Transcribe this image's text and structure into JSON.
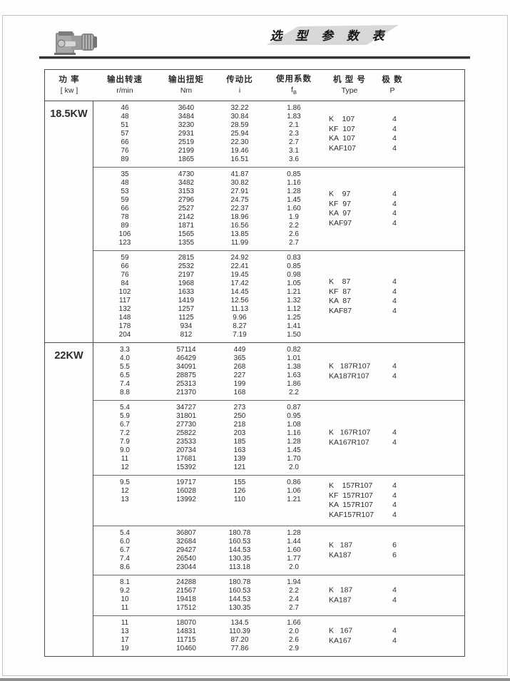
{
  "page": {
    "title": "选 型 参 数 表",
    "logo_icon": "gearmotor-photo"
  },
  "table": {
    "headers": [
      {
        "cn": "功  率",
        "en": "[ kw ]"
      },
      {
        "cn": "输出转速",
        "en": "r/min"
      },
      {
        "cn": "输出扭矩",
        "en": "Nm"
      },
      {
        "cn": "传动比",
        "en": "i"
      },
      {
        "cn": "使用系数",
        "en": "f",
        "ensub": "B"
      },
      {
        "cn": "机 型 号",
        "en": "Type"
      },
      {
        "cn": "极  数",
        "en": "P"
      }
    ],
    "sections": [
      {
        "power": "18.5KW",
        "blocks": [
          {
            "rows": [
              [
                "46",
                "3640",
                "32.22",
                "1.86"
              ],
              [
                "48",
                "3484",
                "30.84",
                "1.83"
              ],
              [
                "51",
                "3230",
                "28.59",
                "2.1"
              ],
              [
                "57",
                "2931",
                "25.94",
                "2.3"
              ],
              [
                "66",
                "2519",
                "22.30",
                "2.7"
              ],
              [
                "76",
                "2199",
                "19.46",
                "3.1"
              ],
              [
                "89",
                "1865",
                "16.51",
                "3.6"
              ]
            ],
            "models": [
              {
                "type": "K    107",
                "p": "4"
              },
              {
                "type": "KF  107",
                "p": "4"
              },
              {
                "type": "KA  107",
                "p": "4"
              },
              {
                "type": "KAF107",
                "p": "4"
              }
            ]
          },
          {
            "rows": [
              [
                "35",
                "4730",
                "41.87",
                "0.85"
              ],
              [
                "48",
                "3482",
                "30.82",
                "1.16"
              ],
              [
                "53",
                "3153",
                "27.91",
                "1.28"
              ],
              [
                "59",
                "2796",
                "24.75",
                "1.45"
              ],
              [
                "66",
                "2527",
                "22.37",
                "1.60"
              ],
              [
                "78",
                "2142",
                "18.96",
                "1.9"
              ],
              [
                "89",
                "1871",
                "16.56",
                "2.2"
              ],
              [
                "106",
                "1565",
                "13.85",
                "2.6"
              ],
              [
                "123",
                "1355",
                "11.99",
                "2.7"
              ]
            ],
            "models": [
              {
                "type": "K    97",
                "p": "4"
              },
              {
                "type": "KF  97",
                "p": "4"
              },
              {
                "type": "KA  97",
                "p": "4"
              },
              {
                "type": "KAF97",
                "p": "4"
              }
            ]
          },
          {
            "rows": [
              [
                "59",
                "2815",
                "24.92",
                "0.83"
              ],
              [
                "66",
                "2532",
                "22.41",
                "0.85"
              ],
              [
                "76",
                "2197",
                "19.45",
                "0.98"
              ],
              [
                "84",
                "1968",
                "17.42",
                "1.05"
              ],
              [
                "102",
                "1633",
                "14.45",
                "1.21"
              ],
              [
                "117",
                "1419",
                "12.56",
                "1.32"
              ],
              [
                "132",
                "1257",
                "11.13",
                "1.12"
              ],
              [
                "148",
                "1125",
                "9.96",
                "1.25"
              ],
              [
                "178",
                "934",
                "8.27",
                "1.41"
              ],
              [
                "204",
                "812",
                "7.19",
                "1.50"
              ]
            ],
            "models": [
              {
                "type": "K    87",
                "p": "4"
              },
              {
                "type": "KF  87",
                "p": "4"
              },
              {
                "type": "KA  87",
                "p": "4"
              },
              {
                "type": "KAF87",
                "p": "4"
              }
            ]
          }
        ]
      },
      {
        "power": "22KW",
        "blocks": [
          {
            "rows": [
              [
                "3.3",
                "57114",
                "449",
                "0.82"
              ],
              [
                "4.0",
                "46429",
                "365",
                "1.01"
              ],
              [
                "5.5",
                "34091",
                "268",
                "1.38"
              ],
              [
                "6.5",
                "28875",
                "227",
                "1.63"
              ],
              [
                "7.4",
                "25313",
                "199",
                "1.86"
              ],
              [
                "8.8",
                "21370",
                "168",
                "2.2"
              ]
            ],
            "models": [
              {
                "type": "K   187R107",
                "p": "4"
              },
              {
                "type": "KA187R107",
                "p": "4"
              }
            ]
          },
          {
            "rows": [
              [
                "5.4",
                "34727",
                "273",
                "0.87"
              ],
              [
                "5.9",
                "31801",
                "250",
                "0.95"
              ],
              [
                "6.7",
                "27730",
                "218",
                "1.08"
              ],
              [
                "7.2",
                "25822",
                "203",
                "1.16"
              ],
              [
                "7.9",
                "23533",
                "185",
                "1.28"
              ],
              [
                "9.0",
                "20734",
                "163",
                "1.45"
              ],
              [
                "11",
                "17681",
                "139",
                "1.70"
              ],
              [
                "12",
                "15392",
                "121",
                "2.0"
              ]
            ],
            "models": [
              {
                "type": "K   167R107",
                "p": "4"
              },
              {
                "type": "KA167R107",
                "p": "4"
              }
            ]
          },
          {
            "rows": [
              [
                "9.5",
                "19717",
                "155",
                "0.86"
              ],
              [
                "12",
                "16028",
                "126",
                "1.06"
              ],
              [
                "13",
                "13992",
                "110",
                "1.21"
              ]
            ],
            "models": [
              {
                "type": "K    157R107",
                "p": "4"
              },
              {
                "type": "KF  157R107",
                "p": "4"
              },
              {
                "type": "KA  157R107",
                "p": "4"
              },
              {
                "type": "KAF157R107",
                "p": "4"
              }
            ]
          },
          {
            "rows": [
              [
                "5.4",
                "36807",
                "180.78",
                "1.28"
              ],
              [
                "6.0",
                "32684",
                "160.53",
                "1.44"
              ],
              [
                "6.7",
                "29427",
                "144.53",
                "1.60"
              ],
              [
                "7.4",
                "26540",
                "130.35",
                "1.77"
              ],
              [
                "8.6",
                "23044",
                "113.18",
                "2.0"
              ]
            ],
            "models": [
              {
                "type": "K   187",
                "p": "6"
              },
              {
                "type": "KA187",
                "p": "6"
              }
            ]
          },
          {
            "rows": [
              [
                "8.1",
                "24288",
                "180.78",
                "1.94"
              ],
              [
                "9.2",
                "21567",
                "160.53",
                "2.2"
              ],
              [
                "10",
                "19418",
                "144.53",
                "2.4"
              ],
              [
                "11",
                "17512",
                "130.35",
                "2.7"
              ]
            ],
            "models": [
              {
                "type": "K   187",
                "p": "4"
              },
              {
                "type": "KA187",
                "p": "4"
              }
            ]
          },
          {
            "rows": [
              [
                "11",
                "18070",
                "134.5",
                "1.66"
              ],
              [
                "13",
                "14831",
                "110.39",
                "2.0"
              ],
              [
                "17",
                "11715",
                "87.20",
                "2.6"
              ],
              [
                "19",
                "10460",
                "77.86",
                "2.9"
              ]
            ],
            "models": [
              {
                "type": "K   167",
                "p": "4"
              },
              {
                "type": "KA167",
                "p": "4"
              }
            ]
          }
        ]
      }
    ]
  }
}
